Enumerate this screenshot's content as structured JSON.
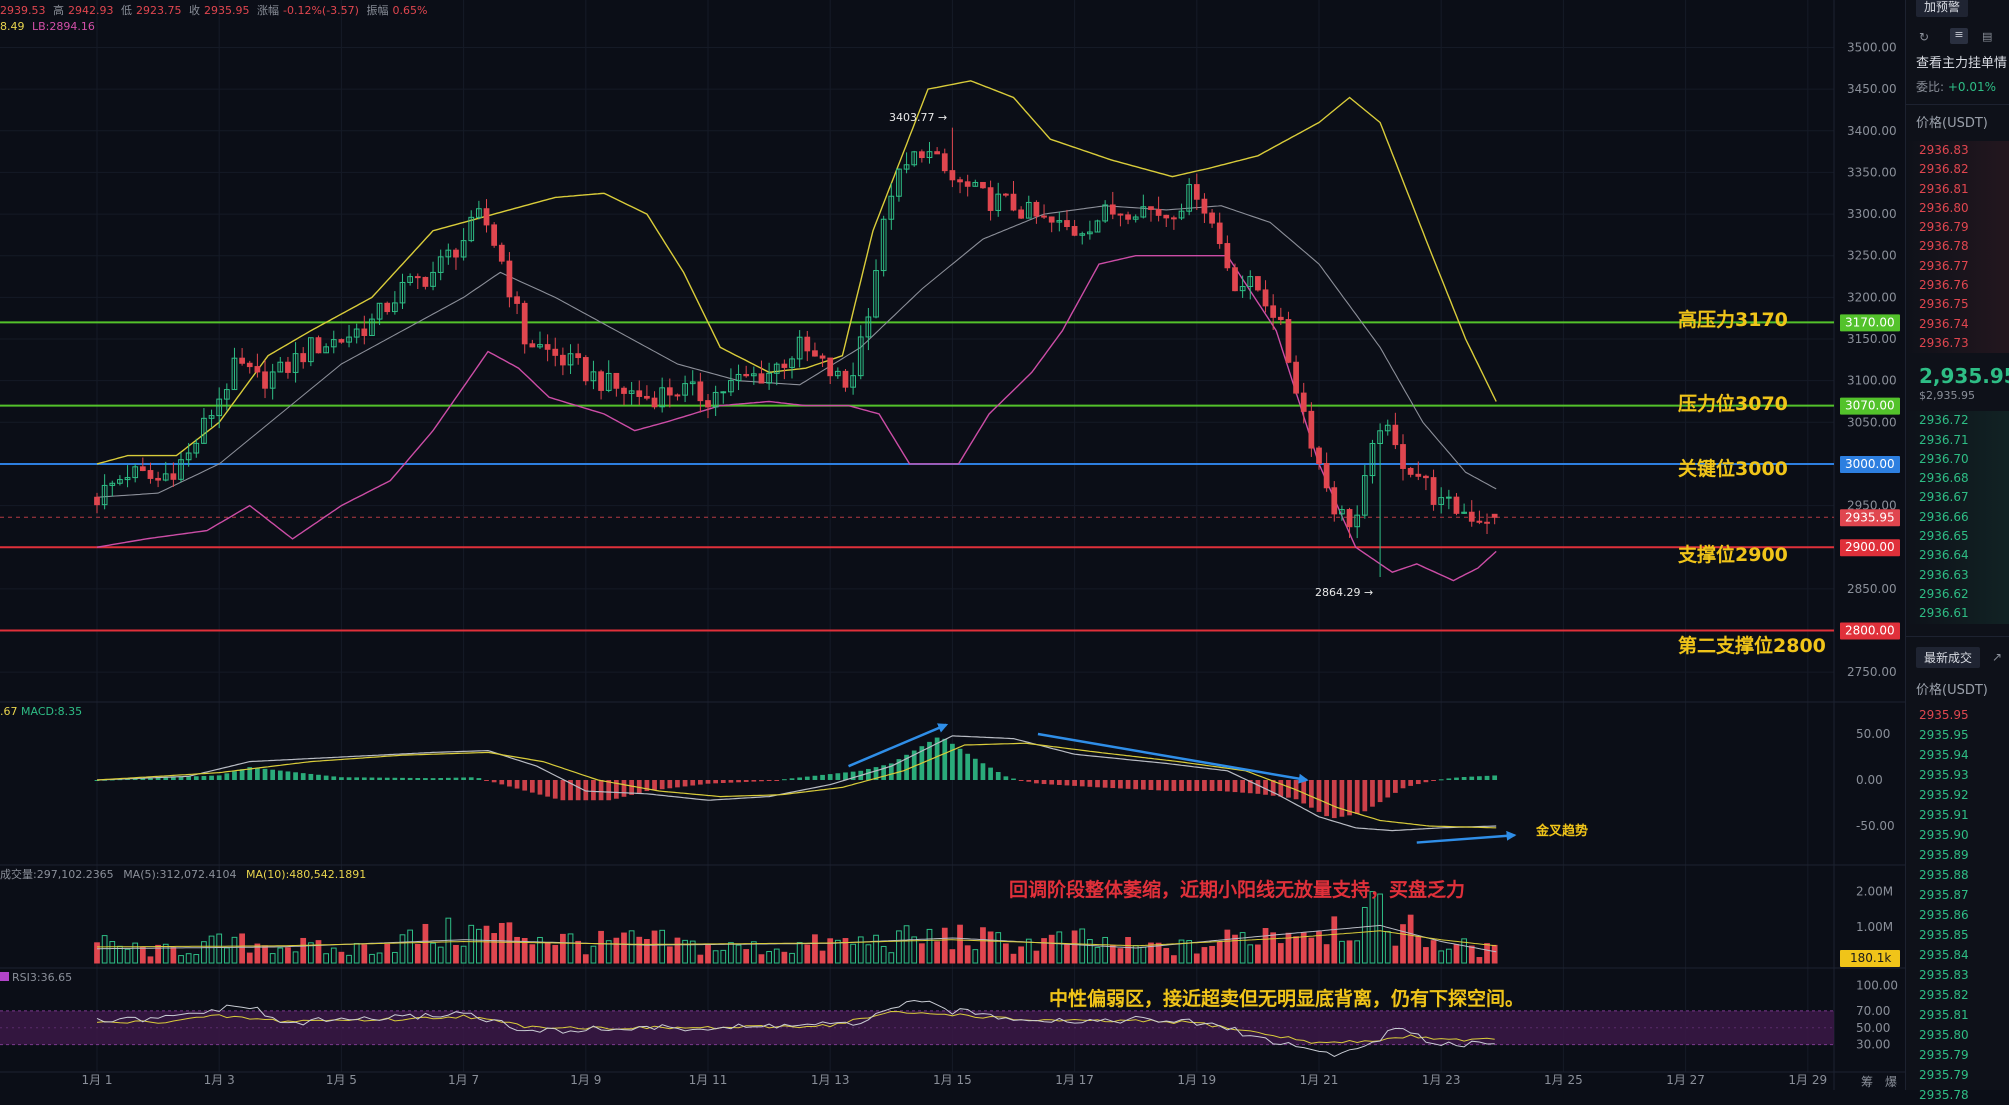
{
  "info_bar": {
    "open_value": "2939.53",
    "high_label": "高",
    "high_value": "2942.93",
    "low_label": "低",
    "low_value": "2923.75",
    "close_label": "收",
    "close_value": "2935.95",
    "change_label": "涨幅",
    "change_value": "-0.12%(-3.57)",
    "amplitude_label": "振幅",
    "amplitude_value": "0.65%",
    "boll_line": "8.49",
    "lb_line": "LB:2894.16"
  },
  "macd_label": {
    "prefix": ".67",
    "macd": "MACD:8.35"
  },
  "volume_label": {
    "vol": "成交量:297,102.2365",
    "ma5": "MA(5):312,072.4104",
    "ma10": "MA(10):480,542.1891"
  },
  "rsi_label": "RSI3:36.65",
  "annotations": {
    "high_marker": "3403.77 →",
    "low_marker": "2864.29 →",
    "gold_cross": "金叉趋势",
    "volume_note": "回调阶段整体萎缩，近期小阳线无放量支持，买盘乏力",
    "rsi_note": "中性偏弱区，接近超卖但无明显底背离，仍有下探空间。"
  },
  "levels": [
    {
      "label": "高压力3170",
      "tag": "3170.00",
      "value": 3170,
      "color": "#53c22b"
    },
    {
      "label": "压力位3070",
      "tag": "3070.00",
      "value": 3070,
      "color": "#53c22b"
    },
    {
      "label": "关键位3000",
      "tag": "3000.00",
      "value": 3000,
      "color": "#2d7fe0"
    },
    {
      "label": "支撑位2900",
      "tag": "2900.00",
      "value": 2900,
      "color": "#e0303a"
    },
    {
      "label": "第二支撑位2800",
      "tag": "2800.00",
      "value": 2800,
      "color": "#e0303a"
    }
  ],
  "current_price_tag": "2935.95",
  "volume_tag": "180.1k",
  "corner_labels": {
    "chip": "筹",
    "burst": "爆"
  },
  "panel": {
    "top_button": "加预警",
    "title1": "查看主力挂单情",
    "ratio_label": "委比:",
    "ratio_value": "+0.01%",
    "price_header": "价格(USDT)",
    "asks": [
      "2936.83",
      "2936.82",
      "2936.81",
      "2936.80",
      "2936.79",
      "2936.78",
      "2936.77",
      "2936.76",
      "2936.75",
      "2936.74",
      "2936.73"
    ],
    "last_price": "2,935.95",
    "last_price_sub": "$2,935.95",
    "bids": [
      "2936.72",
      "2936.71",
      "2936.70",
      "2936.68",
      "2936.67",
      "2936.66",
      "2936.65",
      "2936.64",
      "2936.63",
      "2936.62",
      "2936.61"
    ],
    "trades_button": "最新成交",
    "trades_header": "价格(USDT)",
    "trades": [
      "2935.95",
      "2935.95",
      "2935.94",
      "2935.93",
      "2935.92",
      "2935.91",
      "2935.90",
      "2935.89",
      "2935.88",
      "2935.87",
      "2935.86",
      "2935.85",
      "2935.84",
      "2935.83",
      "2935.82",
      "2935.81",
      "2935.80",
      "2935.79",
      "2935.79",
      "2935.78"
    ]
  },
  "chart_data": {
    "type": "candlestick",
    "symbol_quote": "USDT",
    "x_ticks": [
      "1月 1",
      "1月 3",
      "1月 5",
      "1月 7",
      "1月 9",
      "1月 11",
      "1月 13",
      "1月 15",
      "1月 17",
      "1月 19",
      "1月 21",
      "1月 23",
      "1月 25",
      "1月 27",
      "1月 29"
    ],
    "price_axis": {
      "ylim": [
        2725,
        3515
      ],
      "ticks": [
        "3500.00",
        "3450.00",
        "3400.00",
        "3350.00",
        "3300.00",
        "3250.00",
        "3200.00",
        "3150.00",
        "3100.00",
        "3050.00",
        "3000.00",
        "2950.00",
        "2900.00",
        "2850.00",
        "2800.00",
        "2750.00"
      ]
    },
    "macd_axis": {
      "ylim": [
        -75,
        75
      ],
      "ticks": [
        "50.00",
        "0.00",
        "-50.00"
      ]
    },
    "volume_axis": {
      "ylim": [
        0,
        2600000
      ],
      "ticks": [
        "2.00M",
        "1.00M"
      ]
    },
    "rsi_axis": {
      "ylim": [
        0,
        100
      ],
      "ticks": [
        "100.00",
        "70.00",
        "50.00",
        "30.00"
      ]
    },
    "close_path": [
      [
        1.0,
        2960
      ],
      [
        1.5,
        2990
      ],
      [
        2.0,
        2980
      ],
      [
        2.5,
        3010
      ],
      [
        3.0,
        3080
      ],
      [
        3.3,
        3120
      ],
      [
        3.6,
        3100
      ],
      [
        4.0,
        3110
      ],
      [
        4.5,
        3140
      ],
      [
        5.0,
        3150
      ],
      [
        5.5,
        3170
      ],
      [
        6.0,
        3210
      ],
      [
        6.5,
        3230
      ],
      [
        7.0,
        3270
      ],
      [
        7.3,
        3300
      ],
      [
        7.6,
        3250
      ],
      [
        8.0,
        3150
      ],
      [
        8.5,
        3130
      ],
      [
        9.0,
        3110
      ],
      [
        9.5,
        3090
      ],
      [
        10.0,
        3080
      ],
      [
        10.5,
        3090
      ],
      [
        11.0,
        3080
      ],
      [
        11.5,
        3100
      ],
      [
        12.0,
        3110
      ],
      [
        12.5,
        3140
      ],
      [
        13.0,
        3110
      ],
      [
        13.3,
        3090
      ],
      [
        13.6,
        3180
      ],
      [
        14.0,
        3330
      ],
      [
        14.5,
        3380
      ],
      [
        15.0,
        3340
      ],
      [
        15.5,
        3320
      ],
      [
        16.0,
        3310
      ],
      [
        16.5,
        3290
      ],
      [
        17.0,
        3280
      ],
      [
        17.5,
        3300
      ],
      [
        18.0,
        3310
      ],
      [
        18.5,
        3300
      ],
      [
        19.0,
        3330
      ],
      [
        19.3,
        3280
      ],
      [
        19.6,
        3220
      ],
      [
        20.0,
        3210
      ],
      [
        20.3,
        3180
      ],
      [
        20.6,
        3100
      ],
      [
        21.0,
        3000
      ],
      [
        21.3,
        2940
      ],
      [
        21.6,
        2930
      ],
      [
        22.0,
        3050
      ],
      [
        22.3,
        3010
      ],
      [
        22.6,
        2990
      ],
      [
        23.0,
        2950
      ],
      [
        23.3,
        2945
      ],
      [
        23.6,
        2936
      ]
    ],
    "ohlc_latest": {
      "open": 2939.53,
      "high": 2942.93,
      "low": 2923.75,
      "close": 2935.95
    },
    "extremes": {
      "high": 3403.77,
      "low": 2864.29
    },
    "bollinger_upper": [
      [
        1.0,
        3000
      ],
      [
        1.5,
        3010
      ],
      [
        2.3,
        3010
      ],
      [
        3.0,
        3050
      ],
      [
        3.8,
        3130
      ],
      [
        4.5,
        3160
      ],
      [
        5.5,
        3200
      ],
      [
        6.5,
        3280
      ],
      [
        7.5,
        3300
      ],
      [
        8.5,
        3320
      ],
      [
        9.3,
        3325
      ],
      [
        10.0,
        3300
      ],
      [
        10.6,
        3230
      ],
      [
        11.2,
        3140
      ],
      [
        12.0,
        3110
      ],
      [
        12.6,
        3115
      ],
      [
        13.2,
        3130
      ],
      [
        13.7,
        3280
      ],
      [
        14.6,
        3450
      ],
      [
        15.3,
        3460
      ],
      [
        16.0,
        3440
      ],
      [
        16.6,
        3390
      ],
      [
        17.6,
        3365
      ],
      [
        18.6,
        3345
      ],
      [
        19.2,
        3355
      ],
      [
        20.0,
        3370
      ],
      [
        21.0,
        3410
      ],
      [
        21.5,
        3440
      ],
      [
        22.0,
        3410
      ],
      [
        22.8,
        3260
      ],
      [
        23.4,
        3150
      ],
      [
        23.9,
        3075
      ]
    ],
    "bollinger_middle": [
      [
        1.0,
        2960
      ],
      [
        2.0,
        2965
      ],
      [
        3.0,
        3000
      ],
      [
        4.0,
        3060
      ],
      [
        5.0,
        3120
      ],
      [
        6.0,
        3160
      ],
      [
        7.0,
        3200
      ],
      [
        7.6,
        3230
      ],
      [
        8.5,
        3200
      ],
      [
        9.5,
        3160
      ],
      [
        10.5,
        3120
      ],
      [
        11.5,
        3100
      ],
      [
        12.5,
        3095
      ],
      [
        13.5,
        3140
      ],
      [
        14.5,
        3210
      ],
      [
        15.5,
        3270
      ],
      [
        16.5,
        3300
      ],
      [
        17.5,
        3310
      ],
      [
        18.5,
        3305
      ],
      [
        19.4,
        3310
      ],
      [
        20.2,
        3290
      ],
      [
        21.0,
        3240
      ],
      [
        22.0,
        3140
      ],
      [
        22.7,
        3050
      ],
      [
        23.4,
        2990
      ],
      [
        23.9,
        2970
      ]
    ],
    "bollinger_lower": [
      [
        1.0,
        2900
      ],
      [
        1.8,
        2910
      ],
      [
        2.8,
        2920
      ],
      [
        3.5,
        2950
      ],
      [
        4.2,
        2910
      ],
      [
        5.0,
        2950
      ],
      [
        5.8,
        2980
      ],
      [
        6.5,
        3040
      ],
      [
        7.4,
        3135
      ],
      [
        7.9,
        3115
      ],
      [
        8.4,
        3080
      ],
      [
        9.3,
        3060
      ],
      [
        9.8,
        3040
      ],
      [
        10.3,
        3050
      ],
      [
        11.2,
        3070
      ],
      [
        12.0,
        3075
      ],
      [
        12.6,
        3070
      ],
      [
        13.3,
        3070
      ],
      [
        13.8,
        3060
      ],
      [
        14.3,
        3000
      ],
      [
        15.1,
        3000
      ],
      [
        15.6,
        3060
      ],
      [
        16.3,
        3110
      ],
      [
        16.8,
        3160
      ],
      [
        17.4,
        3240
      ],
      [
        18.0,
        3250
      ],
      [
        18.7,
        3250
      ],
      [
        19.5,
        3250
      ],
      [
        20.3,
        3160
      ],
      [
        21.0,
        3000
      ],
      [
        21.6,
        2900
      ],
      [
        22.2,
        2870
      ],
      [
        22.6,
        2880
      ],
      [
        23.2,
        2860
      ],
      [
        23.6,
        2875
      ],
      [
        23.9,
        2895
      ]
    ],
    "macd_histogram_profile": [
      [
        1.0,
        0
      ],
      [
        3.0,
        5
      ],
      [
        3.5,
        14
      ],
      [
        4.3,
        8
      ],
      [
        5.0,
        3
      ],
      [
        6.5,
        2
      ],
      [
        7.2,
        3
      ],
      [
        7.8,
        -8
      ],
      [
        8.6,
        -22
      ],
      [
        9.4,
        -22
      ],
      [
        10.0,
        -12
      ],
      [
        11.0,
        -4
      ],
      [
        12.0,
        -1
      ],
      [
        12.8,
        5
      ],
      [
        13.5,
        10
      ],
      [
        14.0,
        18
      ],
      [
        14.8,
        48
      ],
      [
        15.4,
        22
      ],
      [
        15.9,
        3
      ],
      [
        16.4,
        -4
      ],
      [
        17.4,
        -8
      ],
      [
        18.0,
        -10
      ],
      [
        18.6,
        -12
      ],
      [
        19.4,
        -12
      ],
      [
        20.0,
        -15
      ],
      [
        20.6,
        -20
      ],
      [
        21.2,
        -42
      ],
      [
        21.7,
        -36
      ],
      [
        22.4,
        -8
      ],
      [
        22.9,
        0
      ],
      [
        23.3,
        3
      ],
      [
        23.9,
        5
      ]
    ],
    "macd_dif": [
      [
        1.0,
        0
      ],
      [
        2.5,
        4
      ],
      [
        3.5,
        20
      ],
      [
        5.0,
        25
      ],
      [
        6.5,
        30
      ],
      [
        7.4,
        32
      ],
      [
        8.2,
        15
      ],
      [
        9.0,
        -12
      ],
      [
        10.0,
        -15
      ],
      [
        11.0,
        -22
      ],
      [
        12.0,
        -18
      ],
      [
        13.0,
        -5
      ],
      [
        14.0,
        15
      ],
      [
        15.0,
        48
      ],
      [
        16.0,
        45
      ],
      [
        17.0,
        28
      ],
      [
        18.5,
        18
      ],
      [
        19.5,
        10
      ],
      [
        20.3,
        -15
      ],
      [
        21.0,
        -40
      ],
      [
        21.6,
        -52
      ],
      [
        22.2,
        -55
      ],
      [
        23.0,
        -52
      ],
      [
        23.9,
        -50
      ]
    ],
    "macd_dea": [
      [
        1.0,
        0
      ],
      [
        3.0,
        8
      ],
      [
        4.5,
        20
      ],
      [
        6.0,
        27
      ],
      [
        7.4,
        30
      ],
      [
        8.3,
        20
      ],
      [
        9.2,
        0
      ],
      [
        10.2,
        -12
      ],
      [
        11.2,
        -18
      ],
      [
        12.2,
        -16
      ],
      [
        13.2,
        -8
      ],
      [
        14.2,
        10
      ],
      [
        15.2,
        38
      ],
      [
        16.2,
        40
      ],
      [
        17.4,
        30
      ],
      [
        18.7,
        20
      ],
      [
        19.8,
        10
      ],
      [
        20.6,
        -10
      ],
      [
        21.3,
        -30
      ],
      [
        22.0,
        -44
      ],
      [
        22.8,
        -50
      ],
      [
        23.9,
        -52
      ]
    ],
    "volume_profile": [
      [
        1.0,
        0.5
      ],
      [
        2.0,
        0.3
      ],
      [
        3.0,
        0.5
      ],
      [
        4.0,
        0.5
      ],
      [
        5.0,
        0.3
      ],
      [
        6.0,
        0.6
      ],
      [
        7.0,
        0.8
      ],
      [
        8.0,
        0.8
      ],
      [
        9.0,
        0.5
      ],
      [
        10.0,
        0.6
      ],
      [
        11.0,
        0.4
      ],
      [
        12.0,
        0.4
      ],
      [
        13.0,
        0.5
      ],
      [
        14.0,
        0.6
      ],
      [
        15.0,
        0.7
      ],
      [
        16.0,
        0.5
      ],
      [
        17.0,
        0.6
      ],
      [
        18.0,
        0.4
      ],
      [
        19.0,
        0.4
      ],
      [
        20.0,
        0.8
      ],
      [
        21.0,
        1.0
      ],
      [
        22.0,
        1.2
      ],
      [
        23.0,
        0.5
      ],
      [
        23.9,
        0.3
      ]
    ],
    "volume_ma5": [
      [
        1.0,
        400000
      ],
      [
        4.0,
        450000
      ],
      [
        7.0,
        650000
      ],
      [
        10.0,
        500000
      ],
      [
        13.0,
        550000
      ],
      [
        15.0,
        700000
      ],
      [
        18.0,
        420000
      ],
      [
        20.5,
        820000
      ],
      [
        22.0,
        1050000
      ],
      [
        23.0,
        600000
      ],
      [
        23.9,
        312072
      ]
    ],
    "volume_ma10": [
      [
        1.0,
        450000
      ],
      [
        4.0,
        480000
      ],
      [
        7.0,
        600000
      ],
      [
        10.0,
        520000
      ],
      [
        13.0,
        560000
      ],
      [
        15.0,
        650000
      ],
      [
        18.0,
        480000
      ],
      [
        20.5,
        700000
      ],
      [
        22.0,
        900000
      ],
      [
        23.0,
        650000
      ],
      [
        23.9,
        480542
      ]
    ],
    "rsi_main": [
      [
        1.0,
        58
      ],
      [
        2.0,
        60
      ],
      [
        3.0,
        72
      ],
      [
        3.5,
        76
      ],
      [
        4.0,
        55
      ],
      [
        5.0,
        60
      ],
      [
        6.0,
        62
      ],
      [
        7.0,
        68
      ],
      [
        7.5,
        58
      ],
      [
        8.0,
        45
      ],
      [
        9.0,
        48
      ],
      [
        10.0,
        50
      ],
      [
        11.0,
        49
      ],
      [
        12.0,
        52
      ],
      [
        13.0,
        55
      ],
      [
        13.5,
        52
      ],
      [
        14.0,
        76
      ],
      [
        14.5,
        80
      ],
      [
        15.0,
        70
      ],
      [
        16.0,
        62
      ],
      [
        17.0,
        58
      ],
      [
        18.0,
        60
      ],
      [
        19.0,
        56
      ],
      [
        19.5,
        50
      ],
      [
        20.0,
        38
      ],
      [
        20.5,
        30
      ],
      [
        21.0,
        22
      ],
      [
        21.3,
        18
      ],
      [
        21.8,
        30
      ],
      [
        22.3,
        50
      ],
      [
        22.7,
        36
      ],
      [
        23.3,
        30
      ],
      [
        23.9,
        35
      ]
    ],
    "rsi_alt": [
      [
        1.0,
        56
      ],
      [
        2.0,
        57
      ],
      [
        3.0,
        64
      ],
      [
        4.0,
        58
      ],
      [
        5.0,
        59
      ],
      [
        6.0,
        60
      ],
      [
        7.0,
        64
      ],
      [
        8.0,
        52
      ],
      [
        9.0,
        50
      ],
      [
        10.0,
        50
      ],
      [
        11.0,
        50
      ],
      [
        12.0,
        51
      ],
      [
        13.0,
        53
      ],
      [
        14.0,
        68
      ],
      [
        15.0,
        66
      ],
      [
        16.0,
        60
      ],
      [
        17.0,
        58
      ],
      [
        18.0,
        58
      ],
      [
        19.0,
        56
      ],
      [
        20.0,
        44
      ],
      [
        21.0,
        32
      ],
      [
        21.8,
        34
      ],
      [
        22.5,
        40
      ],
      [
        23.3,
        36
      ],
      [
        23.9,
        36
      ]
    ],
    "rsi_band": [
      30,
      70
    ]
  }
}
